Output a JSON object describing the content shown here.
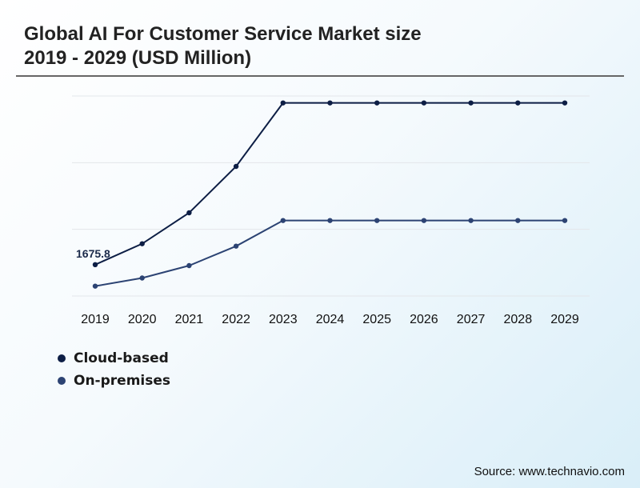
{
  "title": {
    "line1": "Global AI For Customer Service Market size",
    "line2": "2019 - 2029 (USD Million)"
  },
  "source": "Source: www.technavio.com",
  "chart_data": {
    "type": "line",
    "categories": [
      "2019",
      "2020",
      "2021",
      "2022",
      "2023",
      "2024",
      "2025",
      "2026",
      "2027",
      "2028",
      "2029"
    ],
    "series": [
      {
        "name": "Cloud-based",
        "color": "#0d1e45",
        "values": [
          1675.8,
          2460,
          3620,
          5360,
          7740,
          7740,
          7740,
          7740,
          7740,
          7740,
          7740
        ]
      },
      {
        "name": "On-premises",
        "color": "#2c4373",
        "values": [
          870,
          1175,
          1640,
          2370,
          3330,
          3330,
          3330,
          3330,
          3330,
          3330,
          3330
        ]
      }
    ],
    "data_labels": [
      {
        "series": 0,
        "index": 0,
        "text": "1675.8"
      }
    ],
    "ylim": [
      500,
      8000
    ],
    "grid": true,
    "legend_position": "bottom-left",
    "xlabel": "",
    "ylabel": ""
  }
}
